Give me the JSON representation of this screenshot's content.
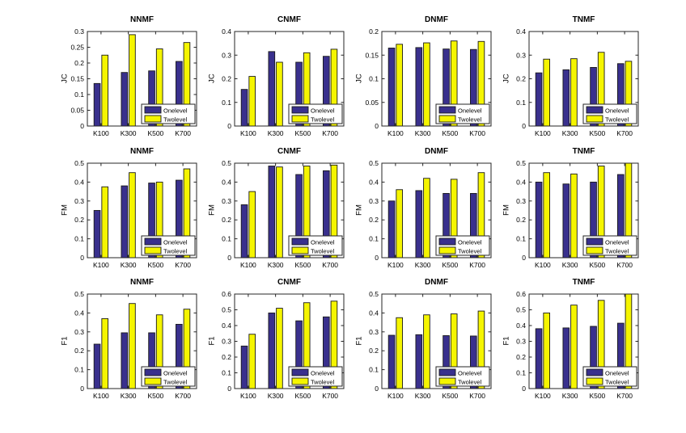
{
  "figure": {
    "background": "#ffffff"
  },
  "colors": {
    "onelevel": "#39308d",
    "twolevel": "#f5f500",
    "bar_edge": "#1a1a1a",
    "axis": "#262626",
    "text": "#000000",
    "legend_bg": "#ffffff"
  },
  "chart_data": [
    {
      "type": "bar",
      "title": "NNMF",
      "ylabel": "JC",
      "legend": "bottom-right",
      "grid": false,
      "categories": [
        "K100",
        "K300",
        "K500",
        "K700"
      ],
      "ylim": [
        0,
        0.3
      ],
      "yticks": [
        "0",
        "0.05",
        "0.1",
        "0.15",
        "0.2",
        "0.25",
        "0.3"
      ],
      "series": [
        {
          "name": "Onelevel",
          "values": [
            0.135,
            0.17,
            0.175,
            0.205
          ]
        },
        {
          "name": "Twolevel",
          "values": [
            0.225,
            0.29,
            0.245,
            0.265
          ]
        }
      ]
    },
    {
      "type": "bar",
      "title": "CNMF",
      "ylabel": "JC",
      "legend": "bottom-right",
      "grid": false,
      "categories": [
        "K100",
        "K300",
        "K500",
        "K700"
      ],
      "ylim": [
        0,
        0.4
      ],
      "yticks": [
        "0",
        "0.1",
        "0.2",
        "0.3",
        "0.4"
      ],
      "series": [
        {
          "name": "Onelevel",
          "values": [
            0.155,
            0.315,
            0.27,
            0.295
          ]
        },
        {
          "name": "Twolevel",
          "values": [
            0.21,
            0.27,
            0.31,
            0.325
          ]
        }
      ]
    },
    {
      "type": "bar",
      "title": "DNMF",
      "ylabel": "JC",
      "legend": "bottom-right",
      "grid": false,
      "categories": [
        "K100",
        "K300",
        "K500",
        "K700"
      ],
      "ylim": [
        0,
        0.2
      ],
      "yticks": [
        "0",
        "0.05",
        "0.1",
        "0.15",
        "0.2"
      ],
      "series": [
        {
          "name": "Onelevel",
          "values": [
            0.165,
            0.166,
            0.163,
            0.162
          ]
        },
        {
          "name": "Twolevel",
          "values": [
            0.173,
            0.176,
            0.18,
            0.179
          ]
        }
      ]
    },
    {
      "type": "bar",
      "title": "TNMF",
      "ylabel": "JC",
      "legend": "bottom-right",
      "grid": false,
      "categories": [
        "K100",
        "K300",
        "K500",
        "K700"
      ],
      "ylim": [
        0,
        0.4
      ],
      "yticks": [
        "0",
        "0.1",
        "0.2",
        "0.3",
        "0.4"
      ],
      "series": [
        {
          "name": "Onelevel",
          "values": [
            0.225,
            0.238,
            0.248,
            0.264
          ]
        },
        {
          "name": "Twolevel",
          "values": [
            0.283,
            0.285,
            0.312,
            0.274
          ]
        }
      ]
    },
    {
      "type": "bar",
      "title": "NNMF",
      "ylabel": "FM",
      "legend": "bottom-right",
      "grid": false,
      "categories": [
        "K100",
        "K300",
        "K500",
        "K700"
      ],
      "ylim": [
        0,
        0.5
      ],
      "yticks": [
        "0",
        "0.1",
        "0.2",
        "0.3",
        "0.4",
        "0.5"
      ],
      "series": [
        {
          "name": "Onelevel",
          "values": [
            0.25,
            0.38,
            0.395,
            0.41
          ]
        },
        {
          "name": "Twolevel",
          "values": [
            0.375,
            0.45,
            0.4,
            0.47
          ]
        }
      ]
    },
    {
      "type": "bar",
      "title": "CNMF",
      "ylabel": "FM",
      "legend": "bottom-right",
      "grid": false,
      "categories": [
        "K100",
        "K300",
        "K500",
        "K700"
      ],
      "ylim": [
        0,
        0.5
      ],
      "yticks": [
        "0",
        "0.1",
        "0.2",
        "0.3",
        "0.4",
        "0.5"
      ],
      "series": [
        {
          "name": "Onelevel",
          "values": [
            0.28,
            0.485,
            0.44,
            0.46
          ]
        },
        {
          "name": "Twolevel",
          "values": [
            0.35,
            0.48,
            0.485,
            0.49
          ]
        }
      ]
    },
    {
      "type": "bar",
      "title": "DNMF",
      "ylabel": "FM",
      "legend": "bottom-right",
      "grid": false,
      "categories": [
        "K100",
        "K300",
        "K500",
        "K700"
      ],
      "ylim": [
        0,
        0.5
      ],
      "yticks": [
        "0",
        "0.1",
        "0.2",
        "0.3",
        "0.4",
        "0.5"
      ],
      "series": [
        {
          "name": "Onelevel",
          "values": [
            0.3,
            0.355,
            0.34,
            0.34
          ]
        },
        {
          "name": "Twolevel",
          "values": [
            0.36,
            0.42,
            0.415,
            0.45
          ]
        }
      ]
    },
    {
      "type": "bar",
      "title": "TNMF",
      "ylabel": "FM",
      "legend": "bottom-right",
      "grid": false,
      "categories": [
        "K100",
        "K300",
        "K500",
        "K700"
      ],
      "ylim": [
        0,
        0.5
      ],
      "yticks": [
        "0",
        "0.1",
        "0.2",
        "0.3",
        "0.4",
        "0.5"
      ],
      "series": [
        {
          "name": "Onelevel",
          "values": [
            0.4,
            0.39,
            0.4,
            0.44
          ]
        },
        {
          "name": "Twolevel",
          "values": [
            0.45,
            0.443,
            0.485,
            0.5
          ]
        }
      ]
    },
    {
      "type": "bar",
      "title": "NNMF",
      "ylabel": "F1",
      "legend": "bottom-right",
      "grid": false,
      "categories": [
        "K100",
        "K300",
        "K500",
        "K700"
      ],
      "ylim": [
        0,
        0.5
      ],
      "yticks": [
        "0",
        "0.1",
        "0.2",
        "0.3",
        "0.4",
        "0.5"
      ],
      "series": [
        {
          "name": "Onelevel",
          "values": [
            0.235,
            0.295,
            0.295,
            0.34
          ]
        },
        {
          "name": "Twolevel",
          "values": [
            0.37,
            0.45,
            0.39,
            0.42
          ]
        }
      ]
    },
    {
      "type": "bar",
      "title": "CNMF",
      "ylabel": "F1",
      "legend": "bottom-right",
      "grid": false,
      "categories": [
        "K100",
        "K300",
        "K500",
        "K700"
      ],
      "ylim": [
        0,
        0.6
      ],
      "yticks": [
        "0",
        "0.1",
        "0.2",
        "0.3",
        "0.4",
        "0.5",
        "0.6"
      ],
      "series": [
        {
          "name": "Onelevel",
          "values": [
            0.27,
            0.48,
            0.43,
            0.455
          ]
        },
        {
          "name": "Twolevel",
          "values": [
            0.345,
            0.51,
            0.545,
            0.555
          ]
        }
      ]
    },
    {
      "type": "bar",
      "title": "DNMF",
      "ylabel": "F1",
      "legend": "bottom-right",
      "grid": false,
      "categories": [
        "K100",
        "K300",
        "K500",
        "K700"
      ],
      "ylim": [
        0,
        0.5
      ],
      "yticks": [
        "0",
        "0.1",
        "0.2",
        "0.3",
        "0.4",
        "0.5"
      ],
      "series": [
        {
          "name": "Onelevel",
          "values": [
            0.282,
            0.285,
            0.28,
            0.278
          ]
        },
        {
          "name": "Twolevel",
          "values": [
            0.375,
            0.39,
            0.395,
            0.41
          ]
        }
      ]
    },
    {
      "type": "bar",
      "title": "TNMF",
      "ylabel": "F1",
      "legend": "bottom-right",
      "grid": false,
      "categories": [
        "K100",
        "K300",
        "K500",
        "K700"
      ],
      "ylim": [
        0,
        0.6
      ],
      "yticks": [
        "0",
        "0.1",
        "0.2",
        "0.3",
        "0.4",
        "0.5",
        "0.6"
      ],
      "series": [
        {
          "name": "Onelevel",
          "values": [
            0.38,
            0.385,
            0.395,
            0.415
          ]
        },
        {
          "name": "Twolevel",
          "values": [
            0.48,
            0.53,
            0.56,
            0.6
          ]
        }
      ]
    }
  ]
}
